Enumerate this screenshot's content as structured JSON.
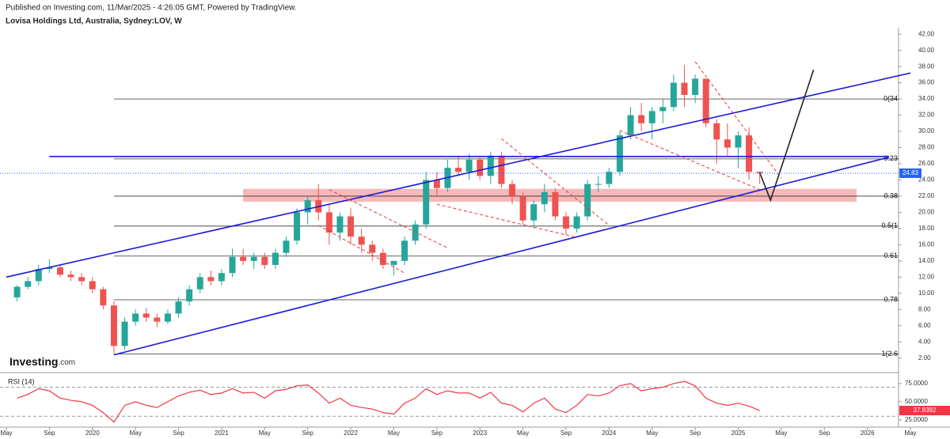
{
  "header": {
    "published": "Published on Investing.com, 11/Mar/2025 - 4:26:05 GMT, Powered by TradingView.",
    "title": "Lovisa Holdings Ltd, Australia, Sydney:LOV, W"
  },
  "logo": {
    "name": "Investing",
    "suffix": ".com"
  },
  "chart_data": {
    "type": "candlestick",
    "up_color": "#26a69a",
    "down_color": "#ef5350",
    "x": [
      "2019-06",
      "2019-07",
      "2019-08",
      "2019-09",
      "2019-10",
      "2019-11",
      "2019-12",
      "2020-01",
      "2020-02",
      "2020-03",
      "2020-04",
      "2020-05",
      "2020-06",
      "2020-07",
      "2020-08",
      "2020-09",
      "2020-10",
      "2020-11",
      "2020-12",
      "2021-01",
      "2021-02",
      "2021-03",
      "2021-04",
      "2021-05",
      "2021-06",
      "2021-07",
      "2021-08",
      "2021-09",
      "2021-10",
      "2021-11",
      "2021-12",
      "2022-01",
      "2022-02",
      "2022-03",
      "2022-04",
      "2022-05",
      "2022-06",
      "2022-07",
      "2022-08",
      "2022-09",
      "2022-10",
      "2022-11",
      "2022-12",
      "2023-01",
      "2023-02",
      "2023-03",
      "2023-04",
      "2023-05",
      "2023-06",
      "2023-07",
      "2023-08",
      "2023-09",
      "2023-10",
      "2023-11",
      "2023-12",
      "2024-01",
      "2024-02",
      "2024-03",
      "2024-04",
      "2024-05",
      "2024-06",
      "2024-07",
      "2024-08",
      "2024-09",
      "2024-10",
      "2024-11",
      "2024-12",
      "2025-01",
      "2025-02",
      "2025-03"
    ],
    "open": [
      9.5,
      10.8,
      11.5,
      13,
      13.2,
      12.3,
      12,
      11.5,
      10.5,
      8.5,
      3.5,
      6.5,
      7.5,
      7,
      6.5,
      7.5,
      9,
      10.5,
      12,
      11.5,
      12.5,
      14.5,
      14,
      14.5,
      13.5,
      15,
      16.5,
      20,
      21.5,
      20,
      17.5,
      19.5,
      17,
      16,
      15,
      13.5,
      14,
      16.5,
      18.5,
      24,
      23,
      25.5,
      25,
      26.5,
      24.5,
      27,
      23.5,
      22,
      19,
      21,
      22.5,
      19.5,
      18,
      19.5,
      23.5,
      23.5,
      25,
      29.5,
      32,
      31,
      32.5,
      33,
      36,
      34.5,
      36.5,
      31,
      29,
      28,
      29.5,
      25
    ],
    "high": [
      11,
      12,
      13.5,
      14.2,
      13.5,
      12.8,
      12.5,
      12,
      10.8,
      9,
      7,
      8,
      8.2,
      7.5,
      8,
      9.5,
      11,
      12.5,
      12.8,
      13,
      15.5,
      15.5,
      15,
      15,
      15.5,
      17,
      20.5,
      22,
      23.5,
      21,
      20,
      20.5,
      18,
      16.5,
      15.5,
      14,
      17,
      19,
      25,
      25,
      26.5,
      27,
      27.2,
      27,
      27.5,
      27.5,
      24,
      22.5,
      21.5,
      23.5,
      23,
      20,
      20,
      24,
      24.5,
      25.5,
      30,
      33,
      33.5,
      33,
      34,
      37,
      38.2,
      37,
      36.5,
      31.5,
      31,
      30,
      30.5,
      25
    ],
    "low": [
      9,
      10.5,
      11,
      12.5,
      12,
      11.5,
      11,
      10,
      8,
      2.6,
      3,
      6,
      6.5,
      5.8,
      6.2,
      7,
      8.5,
      10,
      11,
      11,
      12,
      13.5,
      13,
      13,
      13,
      14.5,
      16,
      18.5,
      19,
      16,
      16.5,
      16,
      15,
      14,
      13,
      12.2,
      13.5,
      16,
      18,
      22,
      22.5,
      24.5,
      24,
      24,
      23.5,
      23,
      21,
      18.5,
      18,
      20,
      19,
      17.2,
      17.5,
      19,
      22.5,
      23,
      24.5,
      29,
      30,
      29,
      31,
      32.5,
      33,
      33.5,
      30.5,
      26,
      27,
      25.5,
      24,
      23.5
    ],
    "close": [
      10.8,
      11.5,
      13,
      13.2,
      12.3,
      12,
      11.5,
      10.5,
      8.5,
      3.5,
      6.5,
      7.5,
      7,
      6.5,
      7.5,
      9,
      10.5,
      12,
      11.5,
      12.5,
      14.5,
      14,
      14.5,
      13.5,
      15,
      16.5,
      20,
      21.5,
      20,
      17.5,
      19.5,
      17,
      16,
      15,
      13.5,
      14,
      16.5,
      18.5,
      24,
      23,
      25.5,
      25,
      26.5,
      24.5,
      27,
      23.5,
      22,
      19,
      21,
      22.5,
      19.5,
      18,
      19.5,
      23.5,
      23.5,
      25,
      29.5,
      32,
      31,
      32.5,
      33,
      36,
      34.5,
      36.5,
      31,
      29,
      28,
      29.5,
      25,
      24.83
    ],
    "xlim": [
      "2019-05",
      "2026-05"
    ],
    "xticks": [
      {
        "value": "2019-05",
        "label": "May"
      },
      {
        "value": "2019-09",
        "label": "Sep"
      },
      {
        "value": "2020-01",
        "label": "2020"
      },
      {
        "value": "2020-05",
        "label": "May"
      },
      {
        "value": "2020-09",
        "label": "Sep"
      },
      {
        "value": "2021-01",
        "label": "2021"
      },
      {
        "value": "2021-05",
        "label": "May"
      },
      {
        "value": "2021-09",
        "label": "Sep"
      },
      {
        "value": "2022-01",
        "label": "2022"
      },
      {
        "value": "2022-05",
        "label": "May"
      },
      {
        "value": "2022-09",
        "label": "Sep"
      },
      {
        "value": "2023-01",
        "label": "2023"
      },
      {
        "value": "2023-05",
        "label": "May"
      },
      {
        "value": "2023-09",
        "label": "Sep"
      },
      {
        "value": "2024-01",
        "label": "2024"
      },
      {
        "value": "2024-05",
        "label": "May"
      },
      {
        "value": "2024-09",
        "label": "Sep"
      },
      {
        "value": "2025-01",
        "label": "2025"
      },
      {
        "value": "2025-05",
        "label": "May"
      },
      {
        "value": "2025-09",
        "label": "Sep"
      },
      {
        "value": "2026-01",
        "label": "2026"
      },
      {
        "value": "2026-05",
        "label": "May"
      }
    ],
    "ylim": [
      0.8,
      42.8
    ],
    "yticks": [
      {
        "value": 2,
        "label": "2.00"
      },
      {
        "value": 4,
        "label": "4.00"
      },
      {
        "value": 6,
        "label": "6.00"
      },
      {
        "value": 8,
        "label": "8.00"
      },
      {
        "value": 10,
        "label": "10.00"
      },
      {
        "value": 12,
        "label": "12.00"
      },
      {
        "value": 14,
        "label": "14.00"
      },
      {
        "value": 16,
        "label": "16.00"
      },
      {
        "value": 18,
        "label": "18.00"
      },
      {
        "value": 20,
        "label": "20.00"
      },
      {
        "value": 22,
        "label": "22.00"
      },
      {
        "value": 24,
        "label": "24.00"
      },
      {
        "value": 26,
        "label": "26.00"
      },
      {
        "value": 28,
        "label": "28.00"
      },
      {
        "value": 30,
        "label": "30.00"
      },
      {
        "value": 32,
        "label": "32.00"
      },
      {
        "value": 34,
        "label": "34.00"
      },
      {
        "value": 36,
        "label": "36.00"
      },
      {
        "value": 38,
        "label": "38.00"
      },
      {
        "value": 40,
        "label": "40.00"
      },
      {
        "value": 42,
        "label": "42.00"
      }
    ],
    "last_color": "#2962ff",
    "fib_start": "2020-03",
    "fib_levels": [
      {
        "label": "0(34",
        "value": 34.0
      },
      {
        "label": "0.23",
        "value": 26.6
      },
      {
        "label": "0.38",
        "value": 22.0
      },
      {
        "label": "0.5(1",
        "value": 18.3
      },
      {
        "label": "0.61",
        "value": 14.6
      },
      {
        "label": "0.78",
        "value": 9.2
      },
      {
        "label": "1(2.6",
        "value": 2.5
      }
    ],
    "zones": [
      {
        "start": [
          "2021-03",
          22.9
        ],
        "end": [
          "2025-12",
          21.3
        ],
        "color": "#f4a7a7"
      }
    ],
    "lines": [
      {
        "points": [
          [
            "2019-05",
            12.0
          ],
          [
            "2026-05",
            37.2
          ]
        ],
        "color": "#1a1adb",
        "dash": false
      },
      {
        "points": [
          [
            "2020-03",
            2.4
          ],
          [
            "2026-03",
            26.8
          ]
        ],
        "color": "#1a1adb",
        "dash": false
      },
      {
        "points": [
          [
            "2019-09",
            26.9
          ],
          [
            "2026-03",
            26.9
          ]
        ],
        "color": "#1a1adb",
        "dash": false
      },
      {
        "points": [
          [
            "2021-10",
            18.4
          ],
          [
            "2022-06",
            12.5
          ]
        ],
        "color": "#e53935",
        "dash": true
      },
      {
        "points": [
          [
            "2021-11",
            22.8
          ],
          [
            "2022-10",
            15.6
          ]
        ],
        "color": "#e53935",
        "dash": true
      },
      {
        "points": [
          [
            "2023-03",
            29.1
          ],
          [
            "2024-01",
            18.4
          ]
        ],
        "color": "#e53935",
        "dash": true
      },
      {
        "points": [
          [
            "2022-09",
            21.0
          ],
          [
            "2023-10",
            16.9
          ]
        ],
        "color": "#e53935",
        "dash": true
      },
      {
        "points": [
          [
            "2024-09",
            38.6
          ],
          [
            "2025-05",
            24.2
          ]
        ],
        "color": "#e53935",
        "dash": true
      },
      {
        "points": [
          [
            "2024-02",
            30.1
          ],
          [
            "2025-03",
            22.8
          ]
        ],
        "color": "#e53935",
        "dash": true
      },
      {
        "points": [
          [
            "2025-03",
            24.9
          ],
          [
            "2025-04",
            21.5
          ],
          [
            "2025-08",
            37.6
          ]
        ],
        "color": "#222222",
        "dash": false
      }
    ],
    "rsi": {
      "label": "RSI (14)",
      "color": "#f23645",
      "values": [
        55,
        60,
        68,
        65,
        55,
        52,
        50,
        45,
        35,
        22,
        45,
        50,
        45,
        42,
        50,
        58,
        63,
        66,
        60,
        62,
        68,
        62,
        63,
        55,
        65,
        67,
        72,
        73,
        62,
        48,
        55,
        45,
        42,
        40,
        35,
        33,
        48,
        55,
        68,
        60,
        65,
        62,
        62,
        55,
        63,
        48,
        45,
        36,
        48,
        55,
        40,
        35,
        45,
        60,
        58,
        62,
        72,
        75,
        65,
        68,
        70,
        75,
        78,
        72,
        55,
        48,
        45,
        48,
        44,
        37.8392
      ],
      "ylim": [
        15,
        88
      ],
      "yticks": [
        {
          "value": 75,
          "label": "75.0000"
        },
        {
          "value": 50,
          "label": "50.0000"
        },
        {
          "value": 25,
          "label": "25.0000"
        }
      ],
      "bands": [
        30,
        70
      ]
    }
  }
}
